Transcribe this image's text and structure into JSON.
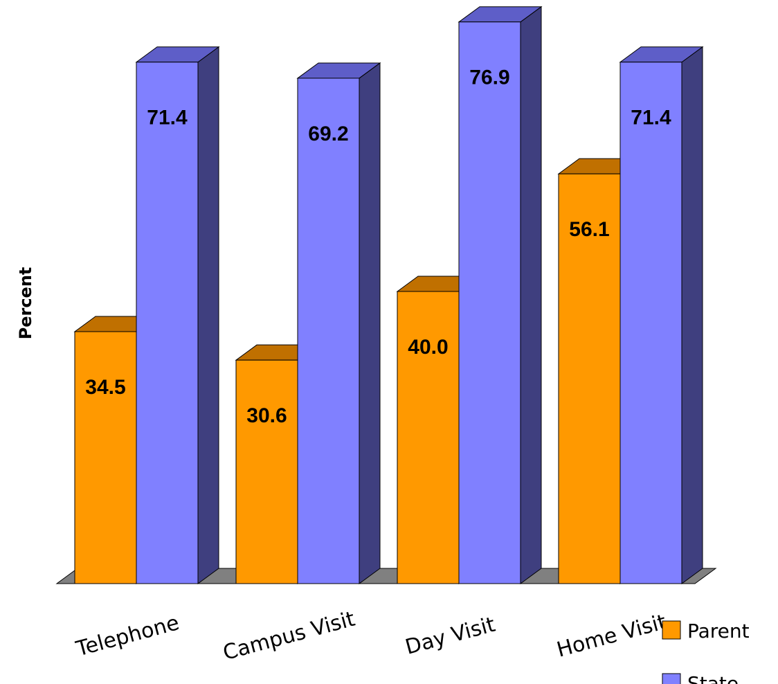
{
  "chart_data": {
    "type": "bar",
    "ylabel": "Percent",
    "ylim": [
      0,
      80
    ],
    "grid": false,
    "legend_position": "bottom-right",
    "categories": [
      "Telephone",
      "Campus Visit",
      "Day Visit",
      "Home Visit"
    ],
    "series": [
      {
        "name": "Parent",
        "values": [
          34.5,
          30.6,
          40.0,
          56.1
        ],
        "labels": [
          "34.5",
          "30.6",
          "40.0",
          "56.1"
        ],
        "color": "#FF9900",
        "top_color": "#C07000",
        "side_color": "#A86400"
      },
      {
        "name": "State",
        "values": [
          71.4,
          69.2,
          76.9,
          71.4
        ],
        "labels": [
          "71.4",
          "69.2",
          "76.9",
          "71.4"
        ],
        "color": "#8080FF",
        "top_color": "#5E5EC8",
        "side_color": "#3F3F7F"
      }
    ],
    "floor_color": "#808080"
  }
}
